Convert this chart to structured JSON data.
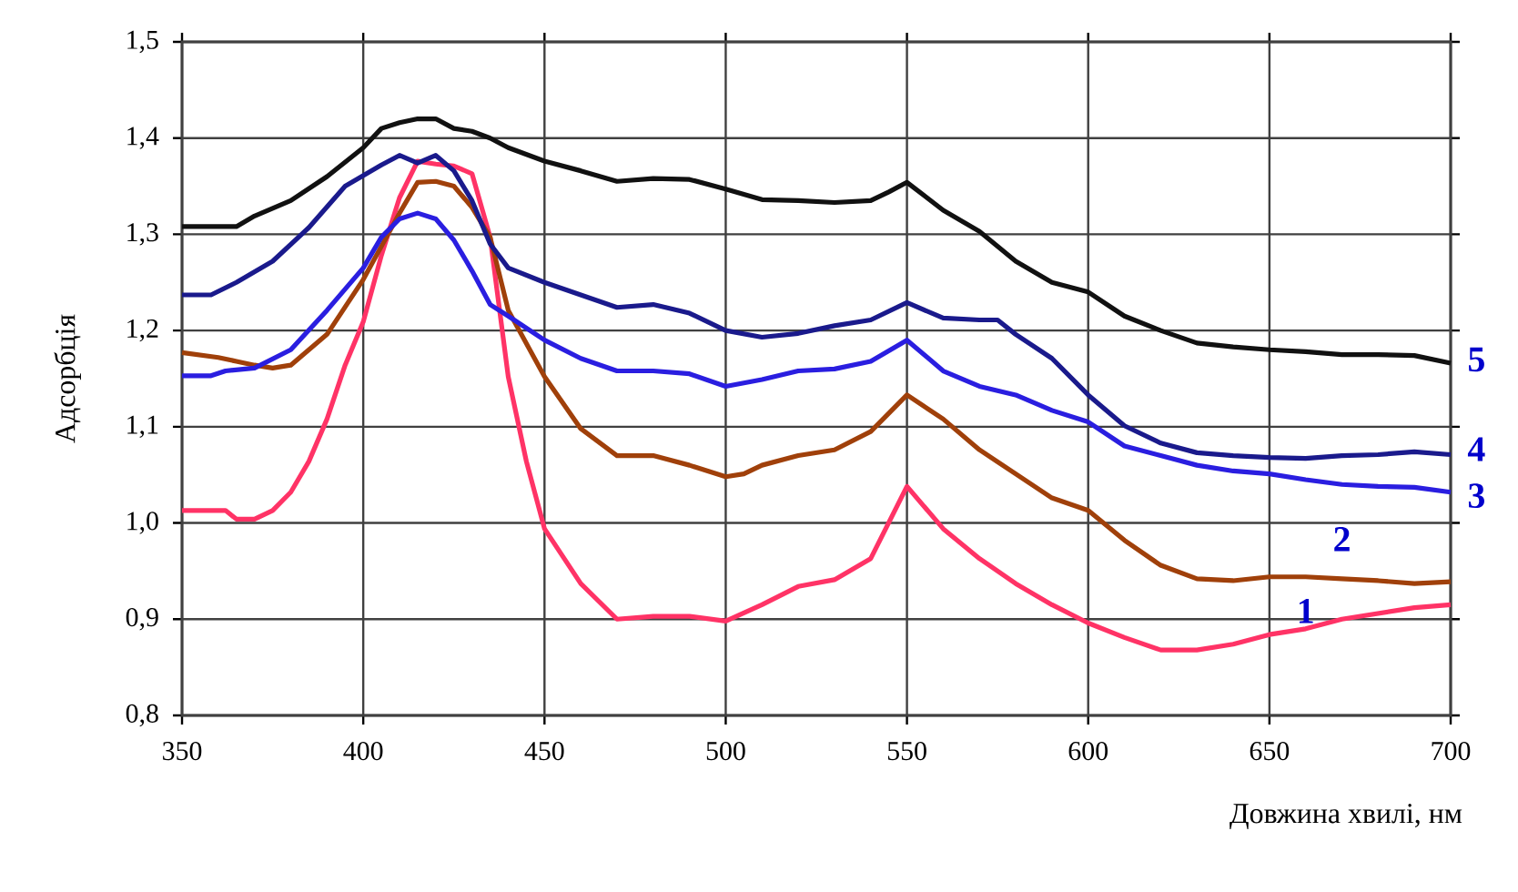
{
  "chart_data": {
    "type": "line",
    "xlabel": "Довжина хвилі, нм",
    "ylabel": "Адсорбція",
    "xlim": [
      350,
      700
    ],
    "ylim": [
      0.8,
      1.5
    ],
    "xticks": [
      350,
      400,
      450,
      500,
      550,
      600,
      650,
      700
    ],
    "yticks": [
      {
        "value": 0.8,
        "label": "0,8"
      },
      {
        "value": 0.9,
        "label": "0,9"
      },
      {
        "value": 1.0,
        "label": "1,0"
      },
      {
        "value": 1.1,
        "label": "1,1"
      },
      {
        "value": 1.2,
        "label": "1,2"
      },
      {
        "value": 1.3,
        "label": "1,3"
      },
      {
        "value": 1.4,
        "label": "1,4"
      },
      {
        "value": 1.5,
        "label": "1,5"
      }
    ],
    "grid": true,
    "legend": false,
    "marker": "none",
    "line_style": "solid",
    "series": [
      {
        "name": "1",
        "color": "#ff3366",
        "x": [
          350,
          362,
          365,
          370,
          375,
          380,
          385,
          390,
          395,
          400,
          405,
          410,
          415,
          420,
          425,
          430,
          435,
          440,
          445,
          450,
          460,
          470,
          480,
          490,
          500,
          510,
          520,
          530,
          540,
          550,
          560,
          570,
          580,
          590,
          600,
          610,
          620,
          630,
          640,
          650,
          660,
          670,
          680,
          690,
          700
        ],
        "values": [
          1.013,
          1.013,
          1.004,
          1.004,
          1.013,
          1.032,
          1.064,
          1.108,
          1.164,
          1.209,
          1.278,
          1.338,
          1.376,
          1.373,
          1.371,
          1.363,
          1.297,
          1.152,
          1.064,
          0.994,
          0.937,
          0.9,
          0.903,
          0.903,
          0.898,
          0.915,
          0.934,
          0.941,
          0.963,
          1.038,
          0.994,
          0.963,
          0.937,
          0.915,
          0.896,
          0.881,
          0.868,
          0.868,
          0.874,
          0.884,
          0.89,
          0.9,
          0.906,
          0.912,
          0.915
        ]
      },
      {
        "name": "2",
        "color": "#a0400a",
        "x": [
          350,
          360,
          365,
          370,
          375,
          380,
          390,
          400,
          410,
          415,
          420,
          425,
          430,
          435,
          440,
          450,
          460,
          470,
          480,
          490,
          500,
          505,
          510,
          520,
          530,
          540,
          550,
          560,
          570,
          580,
          590,
          600,
          610,
          620,
          630,
          640,
          650,
          660,
          670,
          680,
          690,
          700
        ],
        "values": [
          1.177,
          1.172,
          1.168,
          1.164,
          1.161,
          1.164,
          1.196,
          1.253,
          1.322,
          1.354,
          1.355,
          1.35,
          1.328,
          1.297,
          1.221,
          1.152,
          1.098,
          1.07,
          1.07,
          1.06,
          1.048,
          1.051,
          1.06,
          1.07,
          1.076,
          1.095,
          1.133,
          1.108,
          1.076,
          1.051,
          1.026,
          1.013,
          0.982,
          0.956,
          0.942,
          0.94,
          0.944,
          0.944,
          0.942,
          0.94,
          0.937,
          0.939
        ]
      },
      {
        "name": "3",
        "color": "#2a1ee0",
        "x": [
          350,
          358,
          362,
          370,
          380,
          390,
          400,
          405,
          410,
          415,
          420,
          425,
          430,
          435,
          440,
          450,
          460,
          470,
          480,
          490,
          500,
          510,
          520,
          530,
          540,
          550,
          560,
          570,
          580,
          590,
          600,
          610,
          620,
          630,
          640,
          650,
          660,
          670,
          680,
          690,
          700
        ],
        "values": [
          1.153,
          1.153,
          1.158,
          1.161,
          1.18,
          1.221,
          1.265,
          1.297,
          1.316,
          1.322,
          1.316,
          1.294,
          1.262,
          1.227,
          1.215,
          1.19,
          1.171,
          1.158,
          1.158,
          1.155,
          1.142,
          1.149,
          1.158,
          1.16,
          1.168,
          1.19,
          1.158,
          1.142,
          1.133,
          1.117,
          1.105,
          1.08,
          1.07,
          1.06,
          1.054,
          1.051,
          1.045,
          1.04,
          1.038,
          1.037,
          1.032
        ]
      },
      {
        "name": "4",
        "color": "#1a1a8c",
        "x": [
          350,
          358,
          365,
          375,
          385,
          395,
          405,
          410,
          415,
          420,
          425,
          430,
          435,
          440,
          450,
          460,
          470,
          480,
          490,
          500,
          510,
          520,
          530,
          540,
          550,
          560,
          570,
          575,
          580,
          590,
          600,
          610,
          620,
          630,
          640,
          650,
          660,
          670,
          680,
          690,
          700
        ],
        "values": [
          1.237,
          1.237,
          1.25,
          1.272,
          1.307,
          1.35,
          1.372,
          1.382,
          1.374,
          1.382,
          1.366,
          1.335,
          1.29,
          1.265,
          1.25,
          1.237,
          1.224,
          1.227,
          1.218,
          1.2,
          1.193,
          1.197,
          1.205,
          1.211,
          1.229,
          1.213,
          1.211,
          1.211,
          1.196,
          1.171,
          1.133,
          1.101,
          1.083,
          1.073,
          1.07,
          1.068,
          1.067,
          1.07,
          1.071,
          1.074,
          1.071
        ]
      },
      {
        "name": "5",
        "color": "#111111",
        "x": [
          350,
          365,
          370,
          380,
          390,
          400,
          405,
          410,
          415,
          420,
          425,
          430,
          435,
          440,
          450,
          460,
          470,
          480,
          490,
          500,
          510,
          520,
          530,
          540,
          545,
          550,
          560,
          570,
          580,
          590,
          600,
          610,
          620,
          630,
          640,
          650,
          660,
          670,
          680,
          690,
          700
        ],
        "values": [
          1.308,
          1.308,
          1.319,
          1.335,
          1.36,
          1.39,
          1.41,
          1.416,
          1.42,
          1.42,
          1.41,
          1.407,
          1.4,
          1.39,
          1.376,
          1.366,
          1.355,
          1.358,
          1.357,
          1.347,
          1.336,
          1.335,
          1.333,
          1.335,
          1.344,
          1.354,
          1.325,
          1.303,
          1.272,
          1.25,
          1.24,
          1.215,
          1.2,
          1.187,
          1.183,
          1.18,
          1.178,
          1.175,
          1.175,
          1.174,
          1.166
        ]
      }
    ]
  }
}
